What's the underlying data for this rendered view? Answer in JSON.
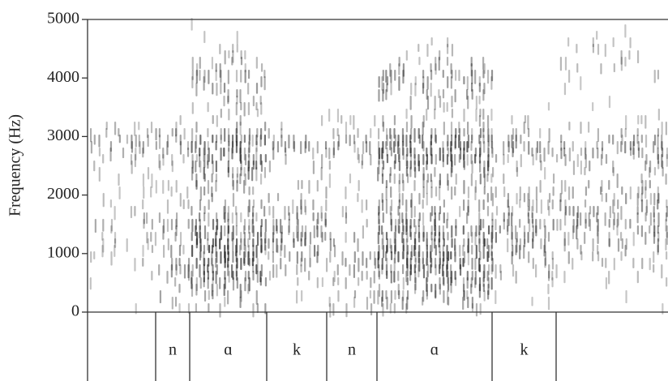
{
  "chart_data": {
    "type": "spectrogram",
    "ylabel": "Frequency (Hz)",
    "ylim": [
      0,
      5000
    ],
    "yticks": [
      0,
      1000,
      2000,
      3000,
      4000,
      5000
    ],
    "segments": [
      null,
      "n",
      "ɑ",
      "k",
      "n",
      "ɑ",
      "k",
      null
    ]
  }
}
